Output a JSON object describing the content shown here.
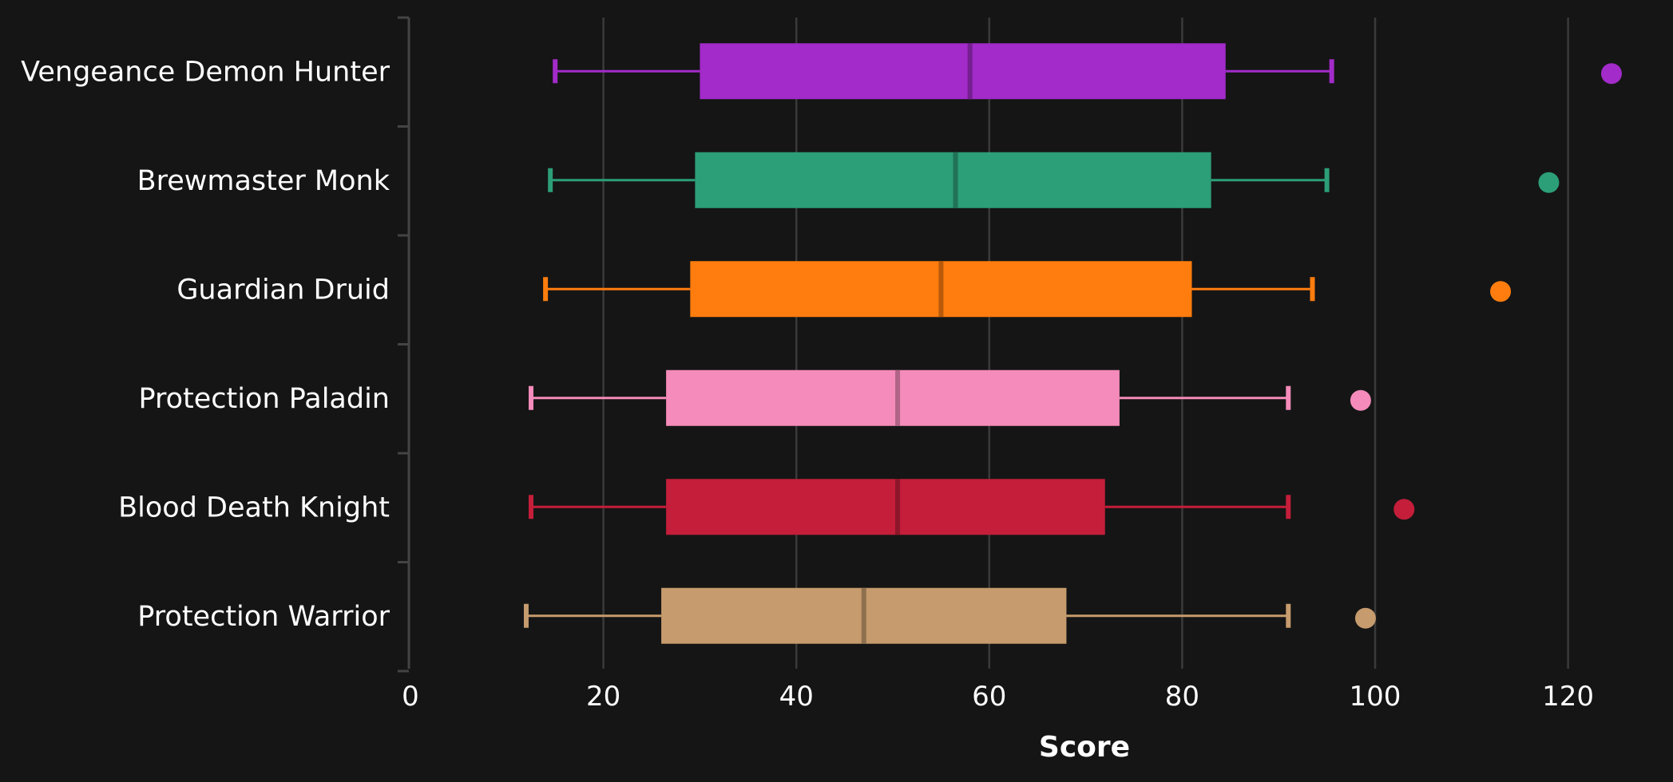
{
  "chart_data": {
    "type": "boxplot",
    "orientation": "horizontal",
    "xlabel": "Score",
    "xlim": [
      0,
      128
    ],
    "xticks": [
      0,
      20,
      40,
      60,
      80,
      100,
      120
    ],
    "grid": "vertical",
    "background": "#151515",
    "categories": [
      {
        "name": "Vengeance Demon Hunter",
        "color": "#a22bc9",
        "whisker_low": 15,
        "q1": 30,
        "median": 58,
        "q3": 84.5,
        "whisker_high": 95.5,
        "outliers": [
          124.5
        ]
      },
      {
        "name": "Brewmaster Monk",
        "color": "#2c9e78",
        "whisker_low": 14.5,
        "q1": 29.5,
        "median": 56.5,
        "q3": 83,
        "whisker_high": 95,
        "outliers": [
          118
        ]
      },
      {
        "name": "Guardian Druid",
        "color": "#ff7d0e",
        "whisker_low": 14,
        "q1": 29,
        "median": 55,
        "q3": 81,
        "whisker_high": 93.5,
        "outliers": [
          113
        ]
      },
      {
        "name": "Protection Paladin",
        "color": "#f58bba",
        "whisker_low": 12.5,
        "q1": 26.5,
        "median": 50.5,
        "q3": 73.5,
        "whisker_high": 91,
        "outliers": [
          98.5
        ]
      },
      {
        "name": "Blood Death Knight",
        "color": "#c41e3a",
        "whisker_low": 12.5,
        "q1": 26.5,
        "median": 50.5,
        "q3": 72,
        "whisker_high": 91,
        "outliers": [
          103
        ]
      },
      {
        "name": "Protection Warrior",
        "color": "#c69b6d",
        "whisker_low": 12,
        "q1": 26,
        "median": 47,
        "q3": 68,
        "whisker_high": 91,
        "outliers": [
          99
        ]
      }
    ]
  }
}
